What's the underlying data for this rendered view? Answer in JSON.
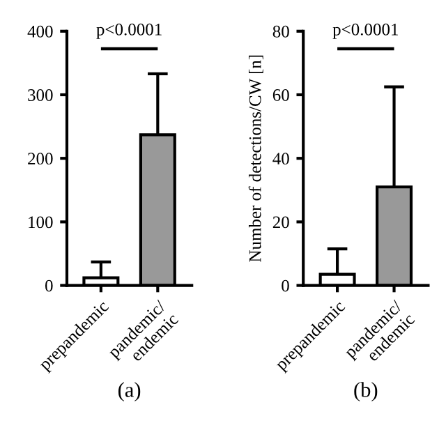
{
  "chart_data": [
    {
      "type": "bar",
      "xlabel": "(a)",
      "categories": [
        "prepandemic",
        "pandemic/\nendemic"
      ],
      "values": [
        12,
        237
      ],
      "colors": [
        "#ffffff",
        "#999999"
      ],
      "errors": [
        [
          12,
          37
        ],
        [
          237,
          333
        ]
      ],
      "ylim": [
        0,
        400
      ],
      "yticks": [
        0,
        100,
        200,
        300,
        400
      ],
      "grid": false,
      "legend": false,
      "annotations": [
        "p<0.0001"
      ]
    },
    {
      "type": "bar",
      "xlabel": "(b)",
      "ylabel": "Number of detections/CW [n]",
      "categories": [
        "prepandemic",
        "pandemic/\nendemic"
      ],
      "values": [
        3.5,
        31
      ],
      "colors": [
        "#ffffff",
        "#999999"
      ],
      "errors": [
        [
          3.5,
          11.5
        ],
        [
          31,
          62.5
        ]
      ],
      "ylim": [
        0,
        80
      ],
      "yticks": [
        0,
        20,
        40,
        60,
        80
      ],
      "grid": false,
      "legend": false,
      "annotations": [
        "p<0.0001"
      ]
    }
  ]
}
